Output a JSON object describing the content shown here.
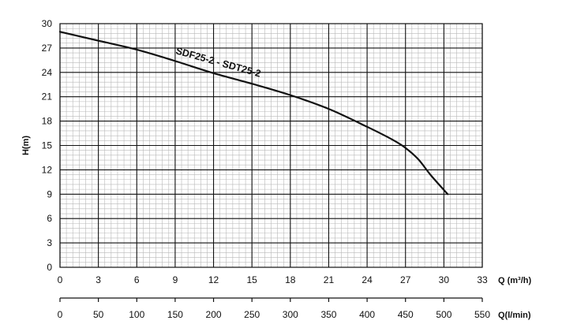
{
  "chart_data": {
    "type": "line",
    "ylabel": "H(m)",
    "xlabel": "Q (m³/h)",
    "xlabel_secondary": "Q(l/min)",
    "xlim": [
      0,
      33
    ],
    "ylim": [
      0,
      30
    ],
    "x_ticks": [
      "0",
      "3",
      "6",
      "9",
      "12",
      "15",
      "18",
      "21",
      "24",
      "27",
      "30",
      "33"
    ],
    "y_ticks": [
      "0",
      "3",
      "6",
      "9",
      "12",
      "15",
      "18",
      "21",
      "24",
      "27",
      "30"
    ],
    "secondary_axis": {
      "xlim": [
        0,
        550
      ],
      "ticks": [
        "0",
        "50",
        "100",
        "150",
        "200",
        "250",
        "300",
        "350",
        "400",
        "450",
        "500",
        "550"
      ]
    },
    "grid": true,
    "series": [
      {
        "name": "SDF25-2 - SDT25-2",
        "color": "#111111",
        "x": [
          0,
          3,
          6,
          9,
          12,
          15,
          18,
          21,
          24,
          26,
          27,
          28,
          29,
          30.3
        ],
        "y": [
          29.0,
          27.9,
          26.8,
          25.4,
          23.9,
          22.6,
          21.2,
          19.5,
          17.3,
          15.7,
          14.7,
          13.3,
          11.3,
          9.0
        ]
      }
    ]
  }
}
